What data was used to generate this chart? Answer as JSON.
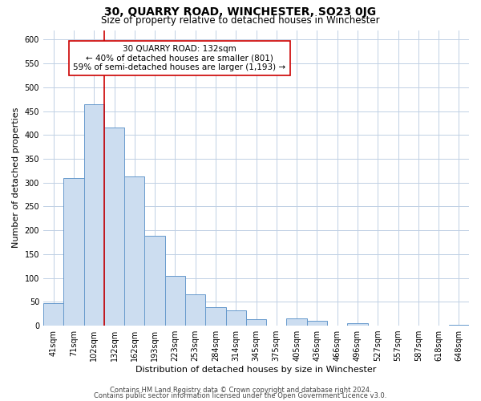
{
  "title": "30, QUARRY ROAD, WINCHESTER, SO23 0JG",
  "subtitle": "Size of property relative to detached houses in Winchester",
  "xlabel": "Distribution of detached houses by size in Winchester",
  "ylabel": "Number of detached properties",
  "bar_labels": [
    "41sqm",
    "71sqm",
    "102sqm",
    "132sqm",
    "162sqm",
    "193sqm",
    "223sqm",
    "253sqm",
    "284sqm",
    "314sqm",
    "345sqm",
    "375sqm",
    "405sqm",
    "436sqm",
    "466sqm",
    "496sqm",
    "527sqm",
    "557sqm",
    "587sqm",
    "618sqm",
    "648sqm"
  ],
  "bar_values": [
    48,
    310,
    465,
    415,
    313,
    188,
    105,
    65,
    38,
    32,
    14,
    0,
    15,
    10,
    0,
    5,
    0,
    0,
    0,
    0,
    2
  ],
  "bar_color": "#ccddf0",
  "bar_edge_color": "#6699cc",
  "vline_x": 2.5,
  "vline_color": "#cc0000",
  "annotation_line1": "30 QUARRY ROAD: 132sqm",
  "annotation_line2": "← 40% of detached houses are smaller (801)",
  "annotation_line3": "59% of semi-detached houses are larger (1,193) →",
  "annotation_box_color": "#ffffff",
  "annotation_box_edge": "#cc0000",
  "ylim": [
    0,
    620
  ],
  "yticks": [
    0,
    50,
    100,
    150,
    200,
    250,
    300,
    350,
    400,
    450,
    500,
    550,
    600
  ],
  "footer1": "Contains HM Land Registry data © Crown copyright and database right 2024.",
  "footer2": "Contains public sector information licensed under the Open Government Licence v3.0.",
  "bg_color": "#ffffff",
  "grid_color": "#c0d0e4",
  "title_fontsize": 10,
  "subtitle_fontsize": 8.5,
  "axis_label_fontsize": 8,
  "tick_fontsize": 7,
  "annotation_fontsize": 7.5,
  "footer_fontsize": 6
}
